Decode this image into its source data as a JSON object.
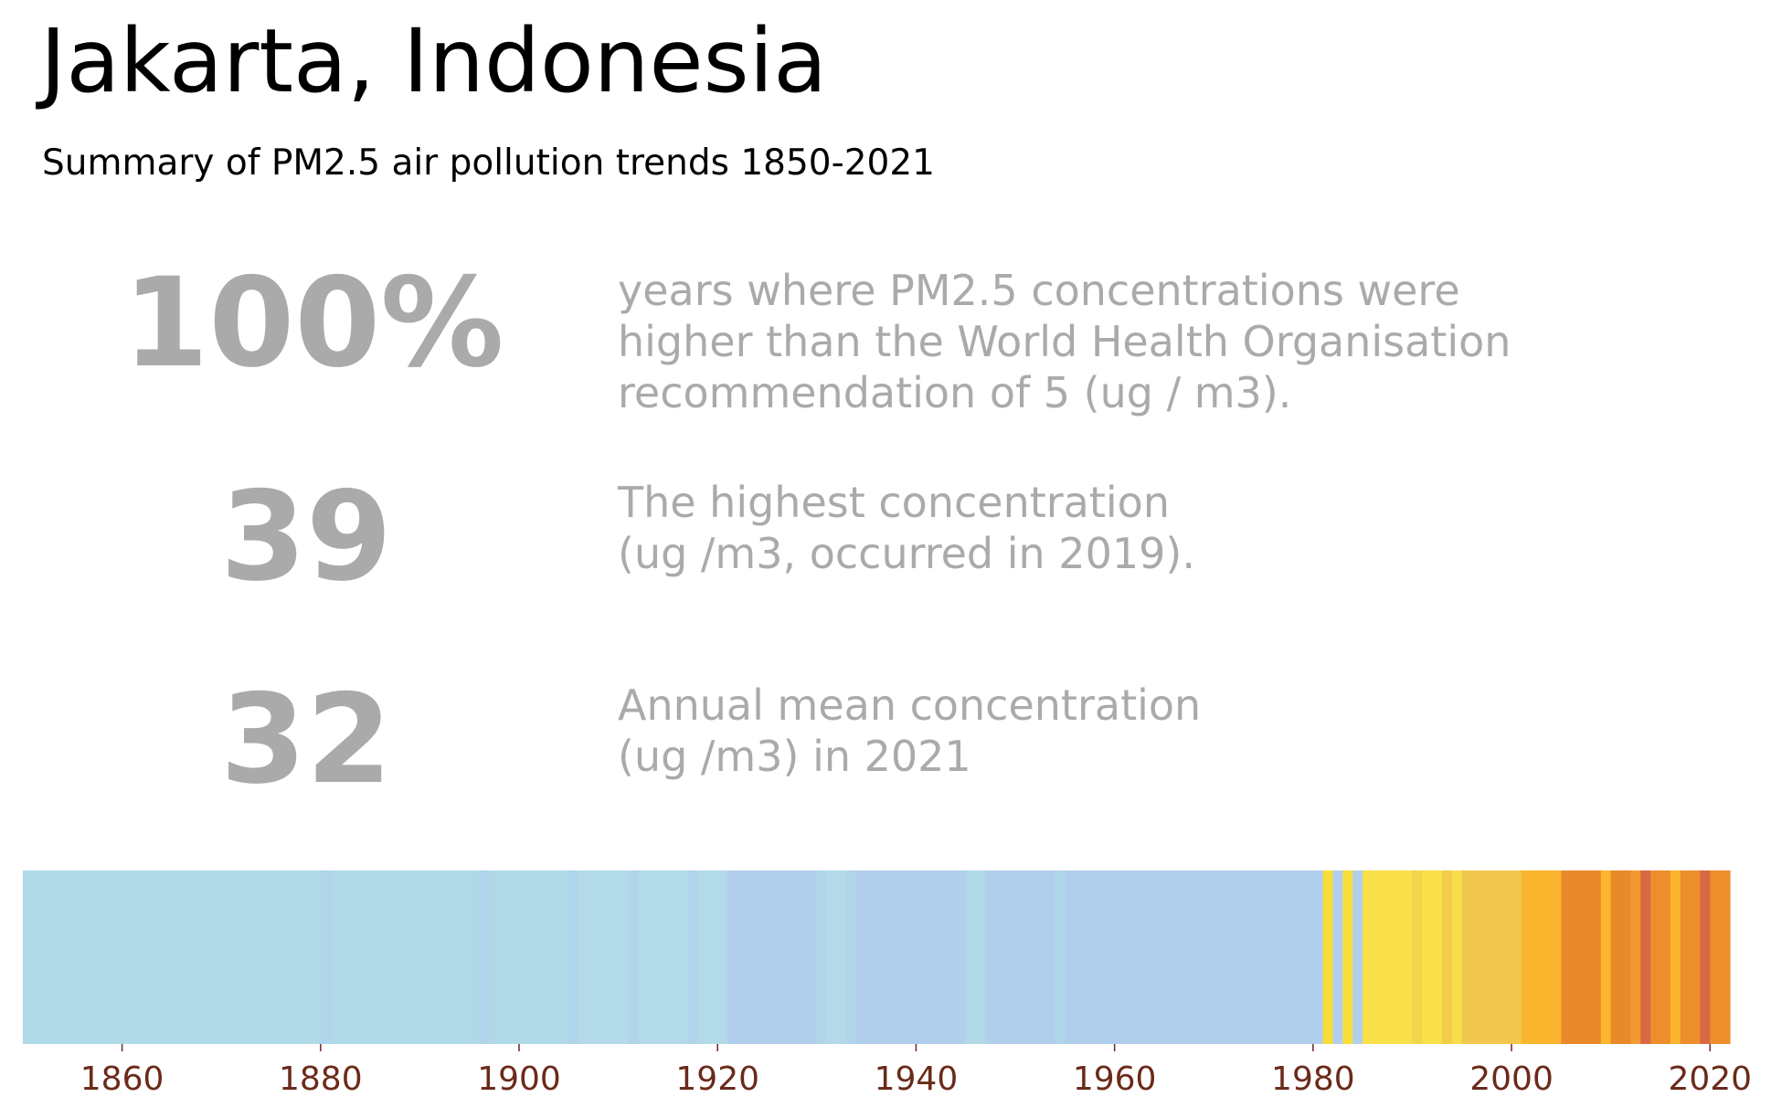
{
  "header": {
    "title": "Jakarta, Indonesia",
    "subtitle": "Summary of PM2.5 air pollution trends 1850-2021"
  },
  "stats": [
    {
      "value": "100%",
      "lines": [
        "years where PM2.5 concentrations were",
        "higher than the World Health Organisation",
        "recommendation of 5 (ug / m3)."
      ]
    },
    {
      "value": "39",
      "lines": [
        "The highest concentration",
        "(ug /m3, occurred in 2019)."
      ]
    },
    {
      "value": "32",
      "lines": [
        "Annual mean concentration",
        "(ug /m3) in 2021"
      ]
    }
  ],
  "chart_data": {
    "type": "heatmap",
    "title": "",
    "xlabel": "",
    "ylabel": "",
    "xlim": [
      1850,
      2022
    ],
    "x_ticks": [
      "1860",
      "1880",
      "1900",
      "1920",
      "1940",
      "1960",
      "1980",
      "2000",
      "2020"
    ],
    "grid": false,
    "segments": [
      {
        "start": 1850,
        "end": 1880,
        "color": "#b0d9e8"
      },
      {
        "start": 1880,
        "end": 1881,
        "color": "#b0d4ea"
      },
      {
        "start": 1881,
        "end": 1896,
        "color": "#b0d9e8"
      },
      {
        "start": 1896,
        "end": 1897,
        "color": "#b0d4ea"
      },
      {
        "start": 1897,
        "end": 1905,
        "color": "#b0d9e8"
      },
      {
        "start": 1905,
        "end": 1906,
        "color": "#b0d4ea"
      },
      {
        "start": 1906,
        "end": 1911,
        "color": "#b2dae8"
      },
      {
        "start": 1911,
        "end": 1912,
        "color": "#b0d4ea"
      },
      {
        "start": 1912,
        "end": 1917,
        "color": "#b2dae8"
      },
      {
        "start": 1917,
        "end": 1918,
        "color": "#b0d4ea"
      },
      {
        "start": 1918,
        "end": 1921,
        "color": "#b2dae8"
      },
      {
        "start": 1921,
        "end": 1930,
        "color": "#b1cfec"
      },
      {
        "start": 1930,
        "end": 1931,
        "color": "#b0d6ea"
      },
      {
        "start": 1931,
        "end": 1933,
        "color": "#b2dae8"
      },
      {
        "start": 1933,
        "end": 1934,
        "color": "#b0d4ea"
      },
      {
        "start": 1934,
        "end": 1945,
        "color": "#b1cfec"
      },
      {
        "start": 1945,
        "end": 1947,
        "color": "#b0d9e8"
      },
      {
        "start": 1947,
        "end": 1954,
        "color": "#b1cfec"
      },
      {
        "start": 1954,
        "end": 1955,
        "color": "#b0d6ea"
      },
      {
        "start": 1955,
        "end": 1981,
        "color": "#b1cfec"
      },
      {
        "start": 1981,
        "end": 1982,
        "color": "#f8de3a"
      },
      {
        "start": 1982,
        "end": 1983,
        "color": "#b1cfec"
      },
      {
        "start": 1983,
        "end": 1984,
        "color": "#f8de3a"
      },
      {
        "start": 1984,
        "end": 1985,
        "color": "#b1cfec"
      },
      {
        "start": 1985,
        "end": 1990,
        "color": "#f9e048"
      },
      {
        "start": 1990,
        "end": 1991,
        "color": "#f3d54a"
      },
      {
        "start": 1991,
        "end": 1993,
        "color": "#f9e048"
      },
      {
        "start": 1993,
        "end": 1994,
        "color": "#f3cd4a"
      },
      {
        "start": 1994,
        "end": 1995,
        "color": "#f7dd4a"
      },
      {
        "start": 1995,
        "end": 2001,
        "color": "#f2c74d"
      },
      {
        "start": 2001,
        "end": 2005,
        "color": "#fbb52f"
      },
      {
        "start": 2005,
        "end": 2009,
        "color": "#e8892a"
      },
      {
        "start": 2009,
        "end": 2010,
        "color": "#fbb52f"
      },
      {
        "start": 2010,
        "end": 2012,
        "color": "#e8892a"
      },
      {
        "start": 2012,
        "end": 2013,
        "color": "#f29a30"
      },
      {
        "start": 2013,
        "end": 2014,
        "color": "#d96845"
      },
      {
        "start": 2014,
        "end": 2016,
        "color": "#ec8e2c"
      },
      {
        "start": 2016,
        "end": 2017,
        "color": "#fbb52f"
      },
      {
        "start": 2017,
        "end": 2018,
        "color": "#ec8e2c"
      },
      {
        "start": 2018,
        "end": 2019,
        "color": "#ec8e2c"
      },
      {
        "start": 2019,
        "end": 2020,
        "color": "#d96845"
      },
      {
        "start": 2020,
        "end": 2022,
        "color": "#ec8e2c"
      }
    ],
    "tick_color": "#6b2a1a"
  }
}
